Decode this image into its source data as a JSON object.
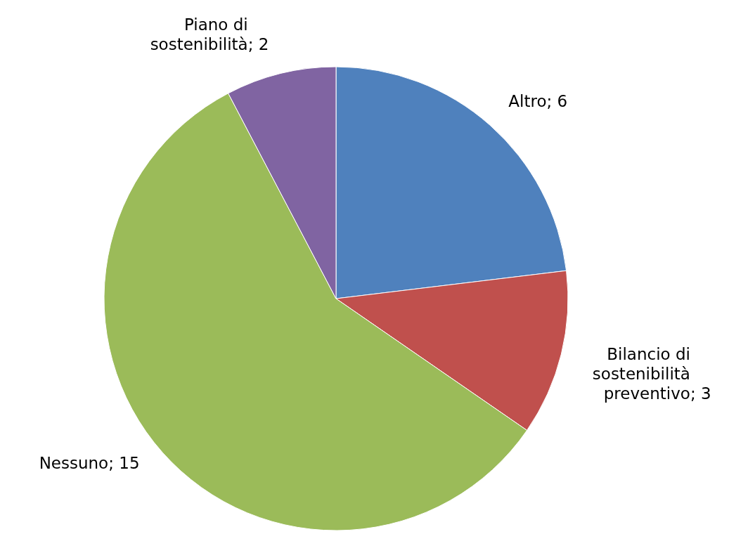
{
  "chart_data": {
    "type": "pie",
    "categories": [
      "Altro",
      "Bilancio di sostenibilità preventivo",
      "Nessuno",
      "Piano di sostenibilità"
    ],
    "values": [
      6,
      3,
      15,
      2
    ],
    "colors": [
      "#4f81bd",
      "#c0504d",
      "#9bbb59",
      "#8064a2"
    ],
    "value_labels": [
      "; 6",
      "; 3",
      "; 15",
      "; 2"
    ],
    "legend": false
  }
}
